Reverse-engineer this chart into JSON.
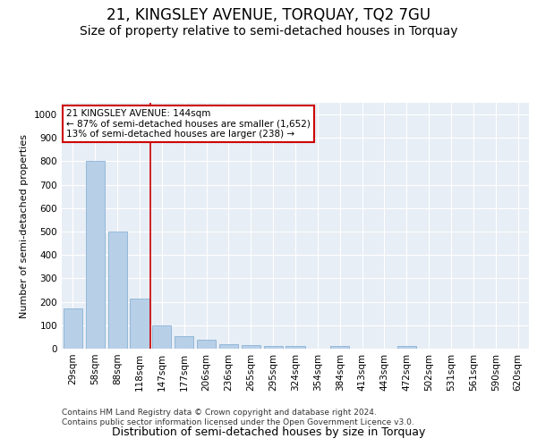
{
  "title": "21, KINGSLEY AVENUE, TORQUAY, TQ2 7GU",
  "subtitle": "Size of property relative to semi-detached houses in Torquay",
  "xlabel": "Distribution of semi-detached houses by size in Torquay",
  "ylabel": "Number of semi-detached properties",
  "categories": [
    "29sqm",
    "58sqm",
    "88sqm",
    "118sqm",
    "147sqm",
    "177sqm",
    "206sqm",
    "236sqm",
    "265sqm",
    "295sqm",
    "324sqm",
    "354sqm",
    "384sqm",
    "413sqm",
    "443sqm",
    "472sqm",
    "502sqm",
    "531sqm",
    "561sqm",
    "590sqm",
    "620sqm"
  ],
  "values": [
    170,
    800,
    500,
    215,
    100,
    55,
    37,
    20,
    17,
    10,
    10,
    0,
    10,
    0,
    0,
    10,
    0,
    0,
    0,
    0,
    0
  ],
  "bar_color": "#b8cfe8",
  "bar_edge_color": "#7aaad0",
  "vline_x_index": 4,
  "vline_color": "#cc0000",
  "annotation_text": "21 KINGSLEY AVENUE: 144sqm\n← 87% of semi-detached houses are smaller (1,652)\n13% of semi-detached houses are larger (238) →",
  "annotation_box_color": "#ffffff",
  "annotation_box_edge": "#cc0000",
  "ylim": [
    0,
    1050
  ],
  "yticks": [
    0,
    100,
    200,
    300,
    400,
    500,
    600,
    700,
    800,
    900,
    1000
  ],
  "background_color": "#e8eef5",
  "grid_color": "#ffffff",
  "footer": "Contains HM Land Registry data © Crown copyright and database right 2024.\nContains public sector information licensed under the Open Government Licence v3.0.",
  "title_fontsize": 12,
  "subtitle_fontsize": 10,
  "xlabel_fontsize": 9,
  "ylabel_fontsize": 8,
  "tick_fontsize": 7.5,
  "footer_fontsize": 6.5,
  "annot_fontsize": 7.5
}
